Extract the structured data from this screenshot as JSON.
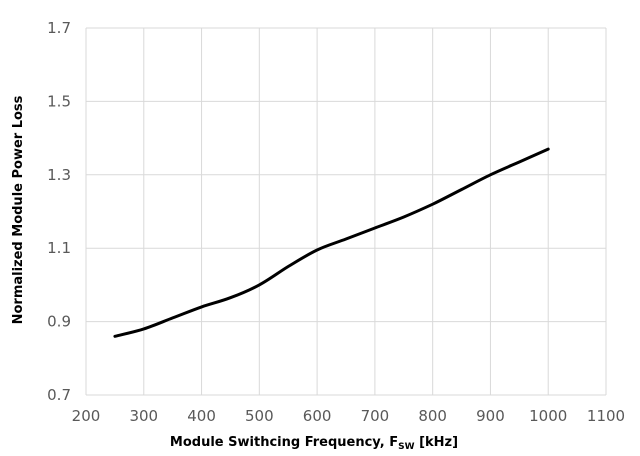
{
  "chart_data": {
    "type": "line",
    "title": "",
    "xlabel": {
      "prefix": "Module Swithcing Frequency, F",
      "subscript": "SW",
      "suffix": " [kHz]"
    },
    "ylabel": "Normalized Module Power Loss",
    "xlim": [
      200,
      1100
    ],
    "ylim": [
      0.7,
      1.7
    ],
    "x_ticks": [
      200,
      300,
      400,
      500,
      600,
      700,
      800,
      900,
      1000,
      1100
    ],
    "y_ticks": [
      "0.7",
      "0.9",
      "1.1",
      "1.3",
      "1.5",
      "1.7"
    ],
    "grid": true,
    "legend": "none",
    "series": [
      {
        "color": "#000000",
        "x": [
          250,
          300,
          350,
          400,
          450,
          500,
          550,
          600,
          650,
          700,
          750,
          800,
          850,
          900,
          950,
          1000
        ],
        "y": [
          0.86,
          0.88,
          0.91,
          0.94,
          0.965,
          1.0,
          1.05,
          1.095,
          1.125,
          1.155,
          1.185,
          1.22,
          1.26,
          1.3,
          1.335,
          1.37
        ]
      }
    ]
  }
}
